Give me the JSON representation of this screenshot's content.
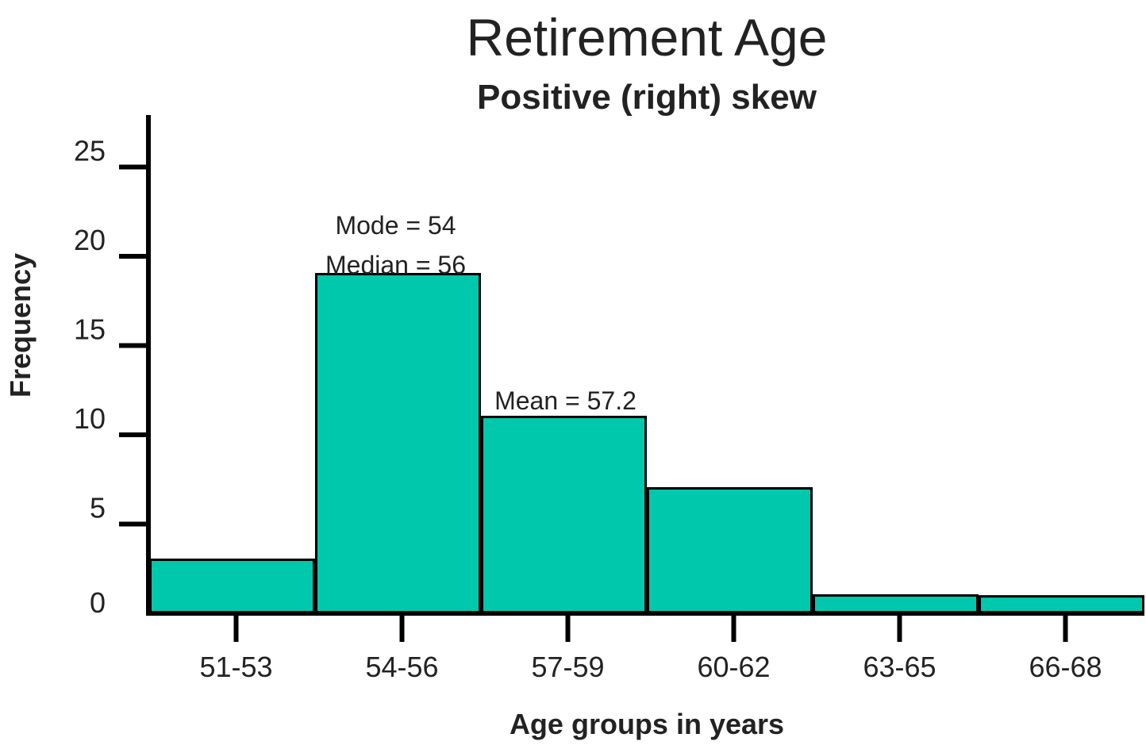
{
  "chart_data": {
    "type": "bar",
    "title": "Retirement Age",
    "subtitle": "Positive (right) skew",
    "xlabel": "Age groups in years",
    "ylabel": "Frequency",
    "categories": [
      "51-53",
      "54-56",
      "57-59",
      "60-62",
      "63-65",
      "66-68"
    ],
    "values": [
      3,
      19,
      11,
      7,
      1,
      0
    ],
    "ylim": [
      0,
      27
    ],
    "yticks": [
      {
        "value": 0,
        "label": "0"
      },
      {
        "value": 5,
        "label": "5"
      },
      {
        "value": 10,
        "label": "10"
      },
      {
        "value": 15,
        "label": "15"
      },
      {
        "value": 20,
        "label": "20"
      },
      {
        "value": 25,
        "label": "25"
      }
    ],
    "bar_color": "#00C8AC",
    "edge_color": "#000000",
    "grid": false,
    "legend": "none",
    "annotations": [
      {
        "id": "mode",
        "text": "Mode = 54"
      },
      {
        "id": "median",
        "text": "Median = 56"
      },
      {
        "id": "mean",
        "text": "Mean = 57.2"
      }
    ]
  }
}
